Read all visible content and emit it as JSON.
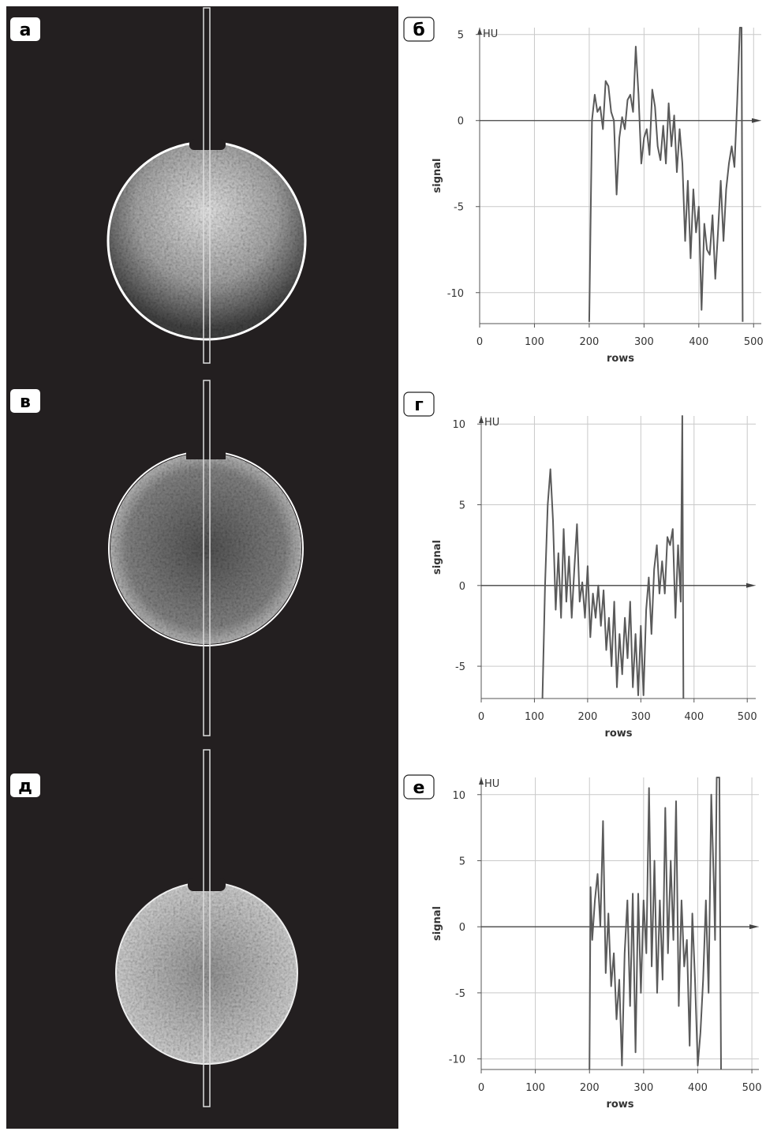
{
  "image_panels": [
    "а",
    "в",
    "д"
  ],
  "chart_data": [
    {
      "type": "line",
      "panel_label": "б",
      "y_unit": "HU",
      "ylabel": "signal",
      "xlabel": "rows",
      "color": "#5a5a5a",
      "grid": true,
      "xlim": [
        0,
        514
      ],
      "ylim": [
        -11.8,
        5.4
      ],
      "xticks": [
        0,
        100,
        200,
        300,
        400,
        500
      ],
      "yticks": [
        5,
        0,
        -5,
        -10
      ],
      "x": [
        200,
        205,
        210,
        215,
        220,
        225,
        230,
        235,
        240,
        245,
        250,
        255,
        260,
        265,
        270,
        275,
        280,
        285,
        290,
        295,
        300,
        305,
        310,
        315,
        320,
        325,
        330,
        335,
        340,
        345,
        350,
        355,
        360,
        365,
        370,
        375,
        380,
        385,
        390,
        395,
        400,
        405,
        410,
        415,
        420,
        425,
        430,
        435,
        440,
        445,
        450,
        455,
        460,
        465,
        470,
        475,
        478,
        480
      ],
      "values": [
        -11.7,
        0,
        1.5,
        0.5,
        0.8,
        -0.5,
        2.3,
        2,
        0.5,
        0,
        -4.3,
        -1,
        0.2,
        -0.5,
        1.2,
        1.5,
        0.5,
        4.3,
        1.5,
        -2.5,
        -1,
        -0.5,
        -2,
        1.8,
        0.8,
        -1.5,
        -2.3,
        -0.3,
        -2.5,
        1,
        -1.5,
        0.3,
        -3,
        -0.5,
        -2.5,
        -7,
        -3.5,
        -8,
        -4,
        -6.5,
        -5,
        -11,
        -6,
        -7.5,
        -7.8,
        -5.5,
        -9.2,
        -6.5,
        -3.5,
        -7,
        -4,
        -2.5,
        -1.5,
        -2.7,
        1,
        5.4,
        5.4,
        -11.7
      ]
    },
    {
      "type": "line",
      "panel_label": "г",
      "y_unit": "HU",
      "ylabel": "signal",
      "xlabel": "rows",
      "color": "#5a5a5a",
      "grid": true,
      "xlim": [
        0,
        516
      ],
      "ylim": [
        -7,
        10.5
      ],
      "xticks": [
        0,
        100,
        200,
        300,
        400,
        500
      ],
      "yticks": [
        10,
        5,
        0,
        -5
      ],
      "x": [
        115,
        120,
        125,
        130,
        135,
        140,
        145,
        150,
        155,
        160,
        165,
        170,
        175,
        180,
        185,
        190,
        195,
        200,
        205,
        210,
        215,
        220,
        225,
        230,
        235,
        240,
        245,
        250,
        255,
        260,
        265,
        270,
        275,
        280,
        285,
        290,
        295,
        300,
        305,
        310,
        315,
        320,
        325,
        330,
        335,
        340,
        345,
        350,
        355,
        360,
        365,
        370,
        375,
        378,
        380
      ],
      "values": [
        -7,
        0,
        5,
        7.2,
        4,
        -1.5,
        2,
        -2,
        3.5,
        -1,
        1.8,
        -2,
        1,
        3.8,
        -1,
        0.2,
        -2,
        1.2,
        -3.2,
        -0.5,
        -2,
        0,
        -2.5,
        -0.3,
        -4,
        -2,
        -5,
        -1,
        -6.3,
        -3,
        -5.5,
        -2,
        -4.5,
        -1,
        -6.3,
        -3,
        -6.8,
        -2.5,
        -6.8,
        -1.5,
        0.5,
        -3,
        1,
        2.5,
        -0.5,
        1.5,
        -0.5,
        3,
        2.5,
        3.5,
        -2,
        2.5,
        -1,
        10.5,
        -7
      ]
    },
    {
      "type": "line",
      "panel_label": "е",
      "y_unit": "HU",
      "ylabel": "signal",
      "xlabel": "rows",
      "color": "#5a5a5a",
      "grid": true,
      "xlim": [
        0,
        513
      ],
      "ylim": [
        -10.8,
        11.3
      ],
      "xticks": [
        0,
        100,
        200,
        300,
        400,
        500
      ],
      "yticks": [
        10,
        5,
        0,
        -5,
        -10
      ],
      "x": [
        200,
        202,
        205,
        210,
        215,
        220,
        225,
        230,
        235,
        240,
        245,
        250,
        255,
        260,
        265,
        270,
        275,
        280,
        285,
        290,
        295,
        300,
        305,
        310,
        315,
        320,
        325,
        330,
        335,
        340,
        345,
        350,
        355,
        360,
        365,
        370,
        375,
        380,
        385,
        390,
        395,
        400,
        405,
        410,
        415,
        420,
        425,
        430,
        432,
        435,
        440,
        443
      ],
      "values": [
        -10.8,
        3,
        -1,
        2,
        4,
        0,
        8,
        -3.5,
        1,
        -4.5,
        -2,
        -7,
        -4,
        -10.5,
        -2,
        2,
        -6,
        2.5,
        -9.5,
        2.5,
        -5,
        2,
        -2,
        10.5,
        -3,
        5,
        -5,
        2,
        -4,
        9,
        -2,
        5,
        -1,
        9.5,
        -6,
        2,
        -3,
        -1,
        -9,
        1,
        -4,
        -10.5,
        -8,
        -4,
        2,
        -5,
        10,
        3,
        -1,
        11.3,
        11.3,
        -10.8
      ]
    }
  ]
}
